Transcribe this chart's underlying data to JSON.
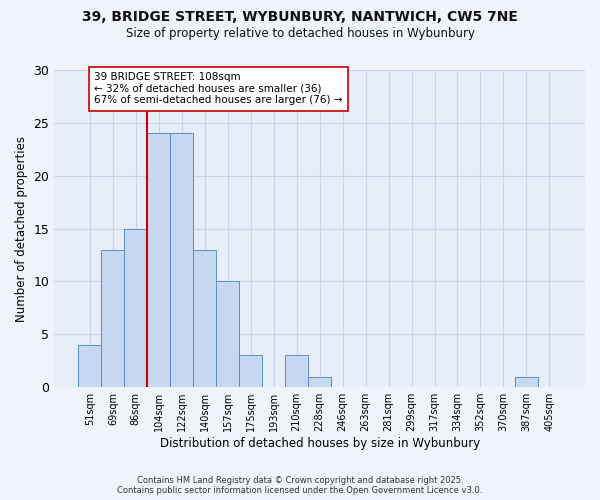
{
  "title": "39, BRIDGE STREET, WYBUNBURY, NANTWICH, CW5 7NE",
  "subtitle": "Size of property relative to detached houses in Wybunbury",
  "xlabel": "Distribution of detached houses by size in Wybunbury",
  "ylabel": "Number of detached properties",
  "bin_labels": [
    "51sqm",
    "69sqm",
    "86sqm",
    "104sqm",
    "122sqm",
    "140sqm",
    "157sqm",
    "175sqm",
    "193sqm",
    "210sqm",
    "228sqm",
    "246sqm",
    "263sqm",
    "281sqm",
    "299sqm",
    "317sqm",
    "334sqm",
    "352sqm",
    "370sqm",
    "387sqm",
    "405sqm"
  ],
  "bin_values": [
    4,
    13,
    15,
    24,
    24,
    13,
    10,
    3,
    0,
    3,
    1,
    0,
    0,
    0,
    0,
    0,
    0,
    0,
    0,
    1,
    0
  ],
  "bar_color": "#c6d9f0",
  "bar_edge_color": "#5b8ec8",
  "vline_x_idx": 3,
  "vline_color": "#cc0000",
  "annotation_text": "39 BRIDGE STREET: 108sqm\n← 32% of detached houses are smaller (36)\n67% of semi-detached houses are larger (76) →",
  "annotation_box_color": "#ffffff",
  "annotation_box_edge_color": "#cc0000",
  "ylim": [
    0,
    30
  ],
  "yticks": [
    0,
    5,
    10,
    15,
    20,
    25,
    30
  ],
  "background_color": "#f0f4fa",
  "plot_bg_color": "#e8eef8",
  "grid_color": "#c8d4e8",
  "footer_line1": "Contains HM Land Registry data © Crown copyright and database right 2025.",
  "footer_line2": "Contains public sector information licensed under the Open Government Licence v3.0."
}
